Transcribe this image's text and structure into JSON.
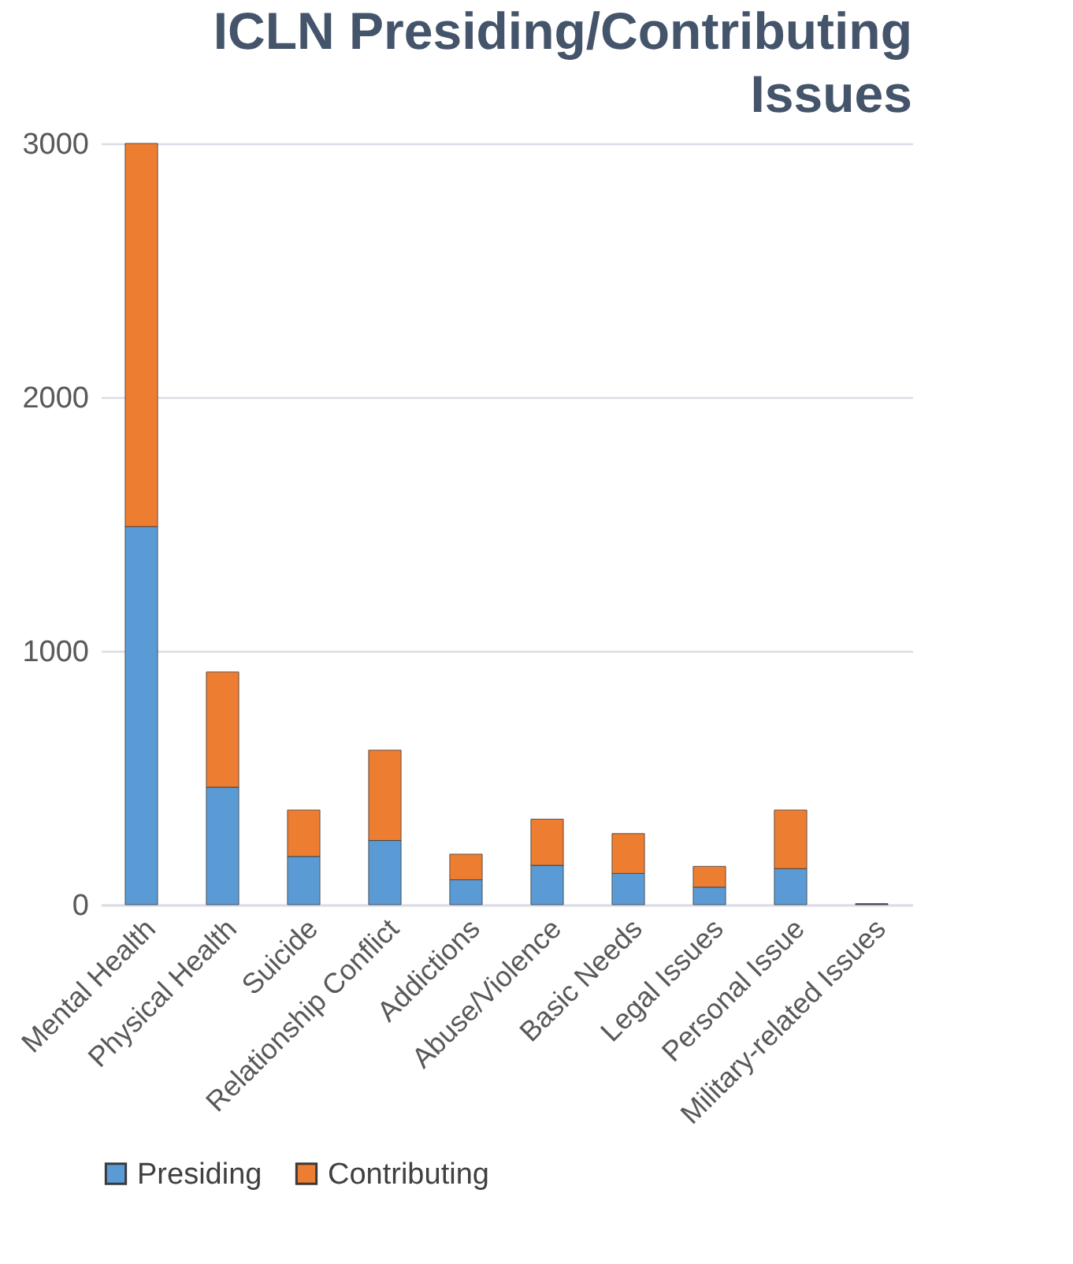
{
  "chart_data": {
    "type": "bar",
    "title": "ICLN Presiding/Contributing Issues",
    "categories": [
      "Mental Health",
      "Physical Health",
      "Suicide",
      "Relationship Conflict",
      "Addictions",
      "Abuse/Violence",
      "Basic Needs",
      "Legal Issues",
      "Personal Issue",
      "Military-related Issues"
    ],
    "series": [
      {
        "name": "Presiding",
        "color": "#5b9bd5",
        "values": [
          1490,
          463,
          190,
          253,
          98,
          155,
          123,
          69,
          142,
          3
        ]
      },
      {
        "name": "Contributing",
        "color": "#ed7d31",
        "values": [
          1510,
          454,
          183,
          356,
          101,
          182,
          157,
          82,
          231,
          0
        ]
      }
    ],
    "stacked": true,
    "ylim": [
      0,
      3000
    ],
    "yticks": [
      0,
      1000,
      2000,
      3000
    ],
    "grid": "y",
    "legend": "bottom"
  }
}
